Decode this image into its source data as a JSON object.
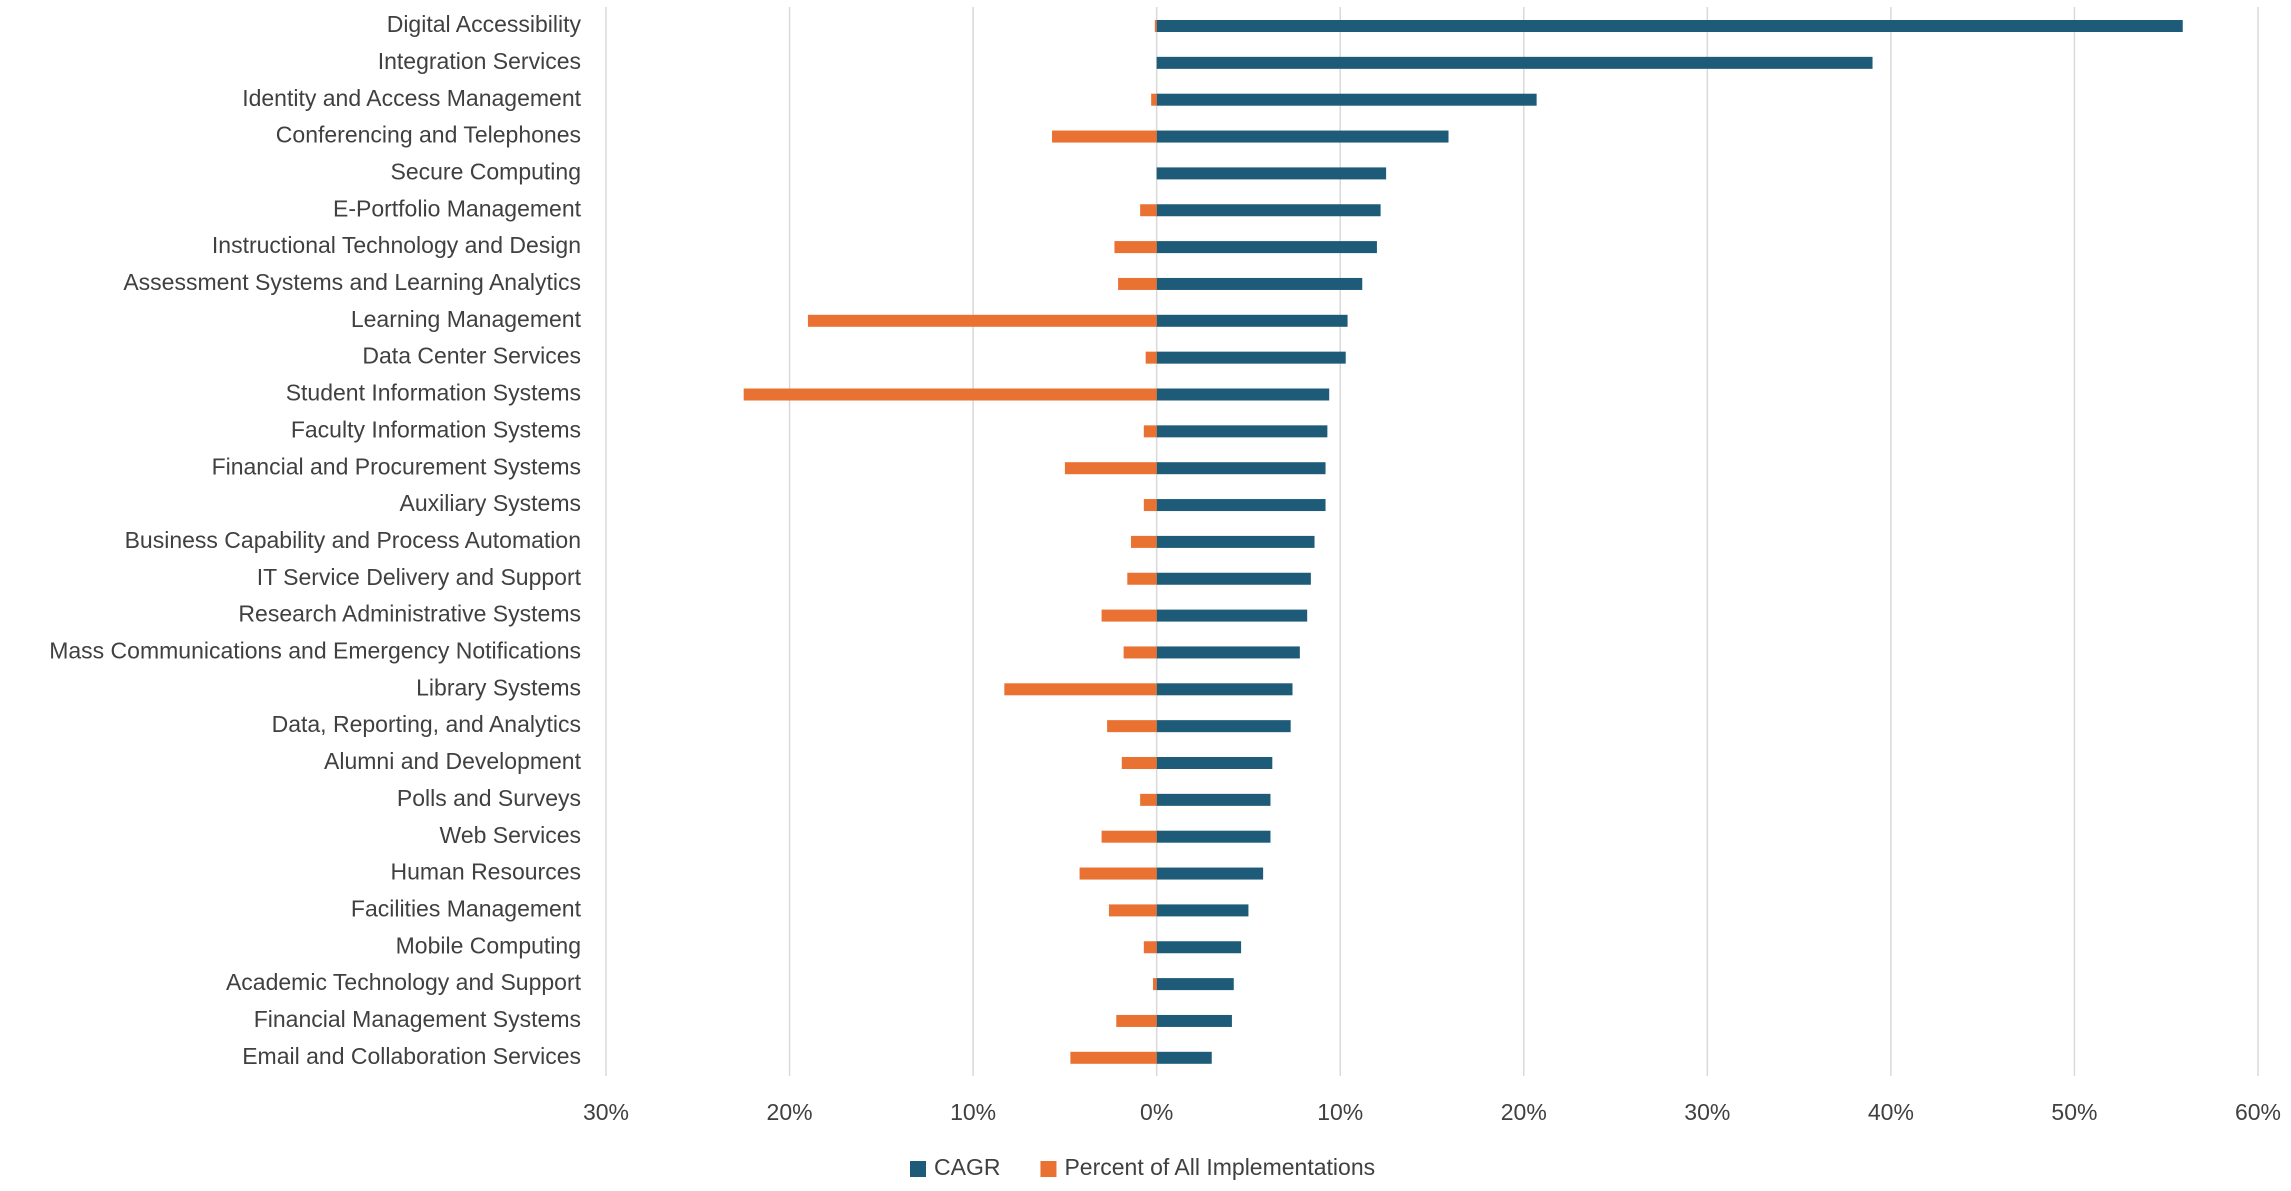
{
  "chart_data": {
    "type": "hbar",
    "categories": [
      "Digital Accessibility",
      "Integration Services",
      "Identity and Access Management",
      "Conferencing and Telephones",
      "Secure Computing",
      "E-Portfolio Management",
      "Instructional Technology and Design",
      "Assessment Systems and Learning Analytics",
      "Learning Management",
      "Data Center Services",
      "Student Information Systems",
      "Faculty Information Systems",
      "Financial and Procurement Systems",
      "Auxiliary Systems",
      "Business Capability and Process Automation",
      "IT Service Delivery and Support",
      "Research Administrative Systems",
      "Mass Communications and Emergency Notifications",
      "Library Systems",
      "Data, Reporting, and Analytics",
      "Alumni and Development",
      "Polls and Surveys",
      "Web Services",
      "Human Resources",
      "Facilities Management",
      "Mobile Computing",
      "Academic Technology and Support",
      "Financial Management Systems",
      "Email and Collaboration Services"
    ],
    "series": [
      {
        "name": "CAGR",
        "color": "#1d5b79",
        "values": [
          55.9,
          39.0,
          20.7,
          15.9,
          12.5,
          12.2,
          12.0,
          11.2,
          10.4,
          10.3,
          9.4,
          9.3,
          9.2,
          9.2,
          8.6,
          8.4,
          8.2,
          7.8,
          7.4,
          7.3,
          6.3,
          6.2,
          6.2,
          5.8,
          5.0,
          4.6,
          4.2,
          4.1,
          3.0
        ]
      },
      {
        "name": "Percent of All Implementations",
        "color": "#e97132",
        "values": [
          -0.1,
          0,
          -0.3,
          -5.7,
          0,
          -0.9,
          -2.3,
          -2.1,
          -19.0,
          -0.6,
          -22.5,
          -0.7,
          -5.0,
          -0.7,
          -1.4,
          -1.6,
          -3.0,
          -1.8,
          -8.3,
          -2.7,
          -1.9,
          -0.9,
          -3.0,
          -4.2,
          -2.6,
          -0.7,
          -0.2,
          -2.2,
          -4.7
        ]
      }
    ],
    "xlim": [
      -30,
      60
    ],
    "xticks": [
      {
        "value": -30,
        "label": "30%"
      },
      {
        "value": -20,
        "label": "20%"
      },
      {
        "value": -10,
        "label": "10%"
      },
      {
        "value": 0,
        "label": "0%"
      },
      {
        "value": 10,
        "label": "10%"
      },
      {
        "value": 20,
        "label": "20%"
      },
      {
        "value": 30,
        "label": "30%"
      },
      {
        "value": 40,
        "label": "40%"
      },
      {
        "value": 50,
        "label": "50%"
      },
      {
        "value": 60,
        "label": "60%"
      }
    ],
    "grid": true,
    "legend": "bottom"
  }
}
